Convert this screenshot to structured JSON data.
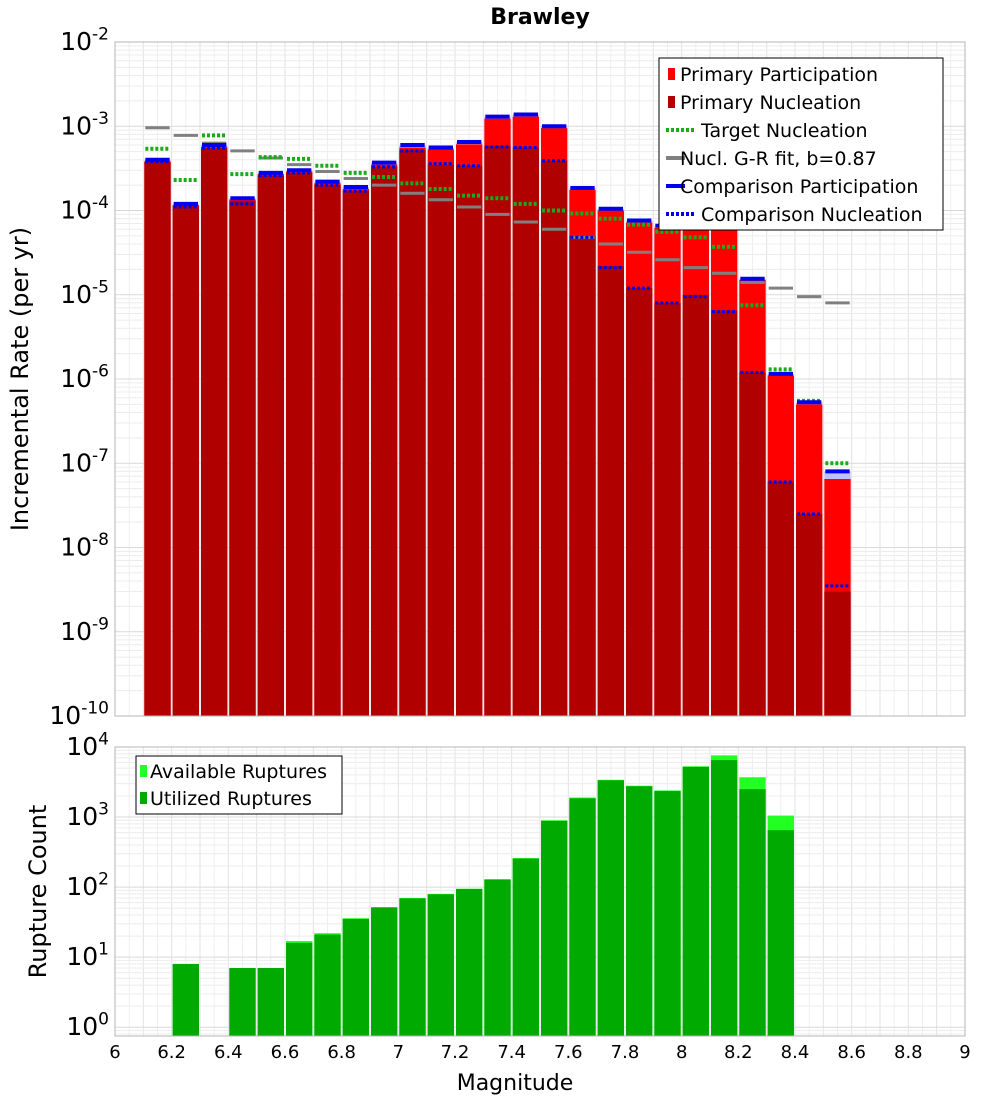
{
  "chart_data": [
    {
      "type": "bar",
      "title": "Brawley",
      "ylabel": "Incremental Rate (per yr)",
      "y_scale": "log",
      "ylim": [
        1e-10,
        0.01
      ],
      "xlim": [
        6,
        9
      ],
      "y_ticks": [
        {
          "base": "10",
          "exp": "-10",
          "value": 1e-10
        },
        {
          "base": "10",
          "exp": "-9",
          "value": 1e-09
        },
        {
          "base": "10",
          "exp": "-8",
          "value": 1e-08
        },
        {
          "base": "10",
          "exp": "-7",
          "value": 1e-07
        },
        {
          "base": "10",
          "exp": "-6",
          "value": 1e-06
        },
        {
          "base": "10",
          "exp": "-5",
          "value": 1e-05
        },
        {
          "base": "10",
          "exp": "-4",
          "value": 0.0001
        },
        {
          "base": "10",
          "exp": "-3",
          "value": 0.001
        },
        {
          "base": "10",
          "exp": "-2",
          "value": 0.01
        }
      ],
      "legend": {
        "placement": "top-right",
        "entries": [
          "Primary Participation",
          "Primary Nucleation",
          "Target Nucleation",
          "Nucl. G-R fit, b=0.87",
          "Comparison Participation",
          "Comparison Nucleation"
        ]
      },
      "colors": {
        "participation": "#ff0000",
        "nucleation": "#b00000",
        "target": "#1aaa1a",
        "gr": "#808080",
        "comparison": "#0000ee",
        "comparison_fill": "#c0c0ff"
      },
      "x": [
        6.15,
        6.25,
        6.35,
        6.45,
        6.55,
        6.65,
        6.75,
        6.85,
        6.95,
        7.05,
        7.15,
        7.25,
        7.35,
        7.45,
        7.55,
        7.65,
        7.75,
        7.85,
        7.95,
        8.05,
        8.15,
        8.25,
        8.35,
        8.45,
        8.55
      ],
      "series": [
        {
          "name": "Primary Participation",
          "values": [
            0.00038,
            0.000115,
            0.00057,
            0.000135,
            0.00027,
            0.00029,
            0.00021,
            0.00018,
            0.00035,
            0.00056,
            0.00053,
            0.00061,
            0.00123,
            0.0013,
            0.00095,
            0.000175,
            0.0001,
            7.2e-05,
            6.2e-05,
            7.5e-05,
            7e-05,
            1.5e-05,
            1.1e-06,
            5e-07,
            6.5e-08
          ]
        },
        {
          "name": "Primary Nucleation",
          "values": [
            0.00038,
            0.000115,
            0.00055,
            0.00013,
            0.00026,
            0.00028,
            0.0002,
            0.00017,
            0.00033,
            0.00052,
            0.00035,
            0.00034,
            0.00058,
            0.00056,
            0.00039,
            5e-05,
            2.2e-05,
            1.2e-05,
            8e-06,
            1e-05,
            6.5e-06,
            1.2e-06,
            6e-08,
            2.5e-08,
            3e-09
          ]
        },
        {
          "name": "Target Nucleation",
          "values": [
            0.00054,
            0.00023,
            0.00078,
            0.00027,
            0.00043,
            0.00041,
            0.00034,
            0.00028,
            0.00025,
            0.00021,
            0.00018,
            0.00015,
            0.00014,
            0.00012,
            0.0001,
            9.2e-05,
            8e-05,
            6.8e-05,
            5.6e-05,
            4.8e-05,
            3.7e-05,
            7.5e-06,
            1.3e-06,
            5.5e-07,
            1e-07
          ]
        },
        {
          "name": "Nucl. G-R fit, b=0.87",
          "values": [
            0.00096,
            0.00078,
            0.00063,
            0.00051,
            0.00042,
            0.00035,
            0.00029,
            0.00024,
            0.0002,
            0.00016,
            0.000134,
            0.00011,
            9e-05,
            7.3e-05,
            6e-05,
            4.8e-05,
            4e-05,
            3.2e-05,
            2.6e-05,
            2.1e-05,
            1.8e-05,
            1.4e-05,
            1.2e-05,
            9.5e-06,
            8e-06
          ]
        },
        {
          "name": "Comparison Participation",
          "values": [
            0.0004,
            0.00012,
            0.0006,
            0.00014,
            0.00028,
            0.0003,
            0.00022,
            0.00019,
            0.00037,
            0.0006,
            0.00056,
            0.00065,
            0.0013,
            0.00138,
            0.001,
            0.000185,
            0.000105,
            7.6e-05,
            6.6e-05,
            0.000105,
            7.8e-05,
            1.55e-05,
            1.15e-06,
            5.3e-07,
            8e-08
          ]
        },
        {
          "name": "Comparison Nucleation",
          "values": [
            0.00038,
            0.00011,
            0.00055,
            0.00012,
            0.00026,
            0.00028,
            0.0002,
            0.00017,
            0.00033,
            0.00051,
            0.00036,
            0.00034,
            0.00057,
            0.00056,
            0.00039,
            4.8e-05,
            2.1e-05,
            1.2e-05,
            8e-06,
            9.5e-06,
            6.3e-06,
            1.2e-06,
            6e-08,
            2.5e-08,
            3.5e-09
          ]
        }
      ]
    },
    {
      "type": "bar",
      "title": "",
      "xlabel": "Magnitude",
      "ylabel": "Rupture Count",
      "y_scale": "log",
      "ylim": [
        0.75,
        10000
      ],
      "xlim": [
        6,
        9
      ],
      "x_ticks": [
        "6",
        "6.2",
        "6.4",
        "6.6",
        "6.8",
        "7",
        "7.2",
        "7.4",
        "7.6",
        "7.8",
        "8",
        "8.2",
        "8.4",
        "8.6",
        "8.8",
        "9"
      ],
      "x_tick_values": [
        6,
        6.2,
        6.4,
        6.6,
        6.8,
        7,
        7.2,
        7.4,
        7.6,
        7.8,
        8,
        8.2,
        8.4,
        8.6,
        8.8,
        9
      ],
      "y_ticks": [
        {
          "base": "10",
          "exp": "0",
          "value": 1
        },
        {
          "base": "10",
          "exp": "1",
          "value": 10
        },
        {
          "base": "10",
          "exp": "2",
          "value": 100
        },
        {
          "base": "10",
          "exp": "3",
          "value": 1000
        },
        {
          "base": "10",
          "exp": "4",
          "value": 10000
        }
      ],
      "legend": {
        "placement": "top-left",
        "entries": [
          "Available Ruptures",
          "Utilized Ruptures"
        ]
      },
      "colors": {
        "available": "#22ff22",
        "utilized": "#00aa00"
      },
      "x": [
        6.25,
        6.45,
        6.55,
        6.65,
        6.75,
        6.85,
        6.95,
        7.05,
        7.15,
        7.25,
        7.35,
        7.45,
        7.55,
        7.65,
        7.75,
        7.85,
        7.95,
        8.05,
        8.15,
        8.25,
        8.35
      ],
      "series": [
        {
          "name": "Available Ruptures",
          "values": [
            8,
            7,
            7,
            17,
            22,
            36,
            52,
            70,
            80,
            95,
            130,
            260,
            900,
            1900,
            3400,
            2800,
            2400,
            5300,
            7600,
            3700,
            1050
          ]
        },
        {
          "name": "Utilized Ruptures",
          "values": [
            8,
            7,
            7,
            16,
            21,
            35,
            51,
            69,
            79,
            94,
            128,
            255,
            880,
            1850,
            3350,
            2750,
            2350,
            5200,
            6500,
            2500,
            650
          ]
        }
      ]
    }
  ]
}
